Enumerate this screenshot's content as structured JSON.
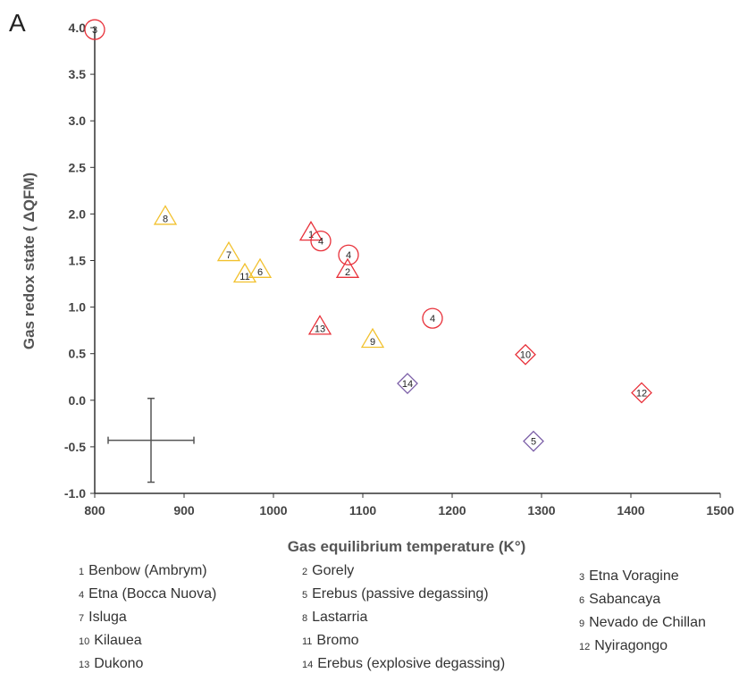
{
  "panel_letter": "A",
  "colors": {
    "red": "#e8313a",
    "yellow": "#f2c12e",
    "purple": "#7b5ea7",
    "axis": "#333333",
    "error": "#555555"
  },
  "chart_data": {
    "type": "scatter",
    "xlabel": "Gas equilibrium temperature (K°)",
    "ylabel": "Gas redox state ( ΔQFM)",
    "xlim": [
      800,
      1500
    ],
    "ylim": [
      -1.0,
      4.0
    ],
    "x_ticks": [
      "800",
      "900",
      "1000",
      "1100",
      "1200",
      "1300",
      "1400",
      "1500"
    ],
    "y_ticks": [
      "-1.0",
      "-0.5",
      "0.0",
      "0.5",
      "1.0",
      "1.5",
      "2.0",
      "2.5",
      "3.0",
      "3.5",
      "4.0"
    ],
    "points": [
      {
        "id": "1",
        "x": 1042,
        "y": 1.8,
        "marker": "triangle",
        "color": "red"
      },
      {
        "id": "2",
        "x": 1083,
        "y": 1.4,
        "marker": "triangle",
        "color": "red"
      },
      {
        "id": "3",
        "x": 800,
        "y": 3.98,
        "marker": "circle",
        "color": "red"
      },
      {
        "id": "4",
        "x": 1053,
        "y": 1.71,
        "marker": "circle",
        "color": "red"
      },
      {
        "id": "4",
        "x": 1084,
        "y": 1.56,
        "marker": "circle",
        "color": "red"
      },
      {
        "id": "4",
        "x": 1178,
        "y": 0.88,
        "marker": "circle",
        "color": "red"
      },
      {
        "id": "5",
        "x": 1291,
        "y": -0.44,
        "marker": "diamond",
        "color": "purple"
      },
      {
        "id": "6",
        "x": 985,
        "y": 1.4,
        "marker": "triangle",
        "color": "yellow"
      },
      {
        "id": "7",
        "x": 950,
        "y": 1.58,
        "marker": "triangle",
        "color": "yellow"
      },
      {
        "id": "8",
        "x": 879,
        "y": 1.97,
        "marker": "triangle",
        "color": "yellow"
      },
      {
        "id": "9",
        "x": 1111,
        "y": 0.65,
        "marker": "triangle",
        "color": "yellow"
      },
      {
        "id": "10",
        "x": 1282,
        "y": 0.49,
        "marker": "diamond",
        "color": "red"
      },
      {
        "id": "11",
        "x": 968,
        "y": 1.35,
        "marker": "triangle",
        "color": "yellow"
      },
      {
        "id": "12",
        "x": 1412,
        "y": 0.08,
        "marker": "diamond",
        "color": "red"
      },
      {
        "id": "13",
        "x": 1052,
        "y": 0.79,
        "marker": "triangle",
        "color": "red"
      },
      {
        "id": "14",
        "x": 1150,
        "y": 0.18,
        "marker": "diamond",
        "color": "purple"
      }
    ],
    "error_bar": {
      "x": 863,
      "y": -0.43,
      "x_minus": 48,
      "x_plus": 48,
      "y_minus": 0.45,
      "y_plus": 0.45
    },
    "legend_placement": "bottom"
  },
  "legend": [
    {
      "num": "1",
      "name": "Benbow (Ambrym)"
    },
    {
      "num": "2",
      "name": "Gorely"
    },
    {
      "num": "3",
      "name": "Etna Voragine"
    },
    {
      "num": "4",
      "name": "Etna (Bocca Nuova)"
    },
    {
      "num": "5",
      "name": "Erebus (passive degassing)"
    },
    {
      "num": "6",
      "name": "Sabancaya"
    },
    {
      "num": "7",
      "name": "Isluga"
    },
    {
      "num": "8",
      "name": "Lastarria"
    },
    {
      "num": "9",
      "name": "Nevado de Chillan"
    },
    {
      "num": "10",
      "name": "Kilauea"
    },
    {
      "num": "11",
      "name": "Bromo"
    },
    {
      "num": "12",
      "name": "Nyiragongo"
    },
    {
      "num": "13",
      "name": "Dukono"
    },
    {
      "num": "14",
      "name": "Erebus (explosive degassing)"
    }
  ]
}
